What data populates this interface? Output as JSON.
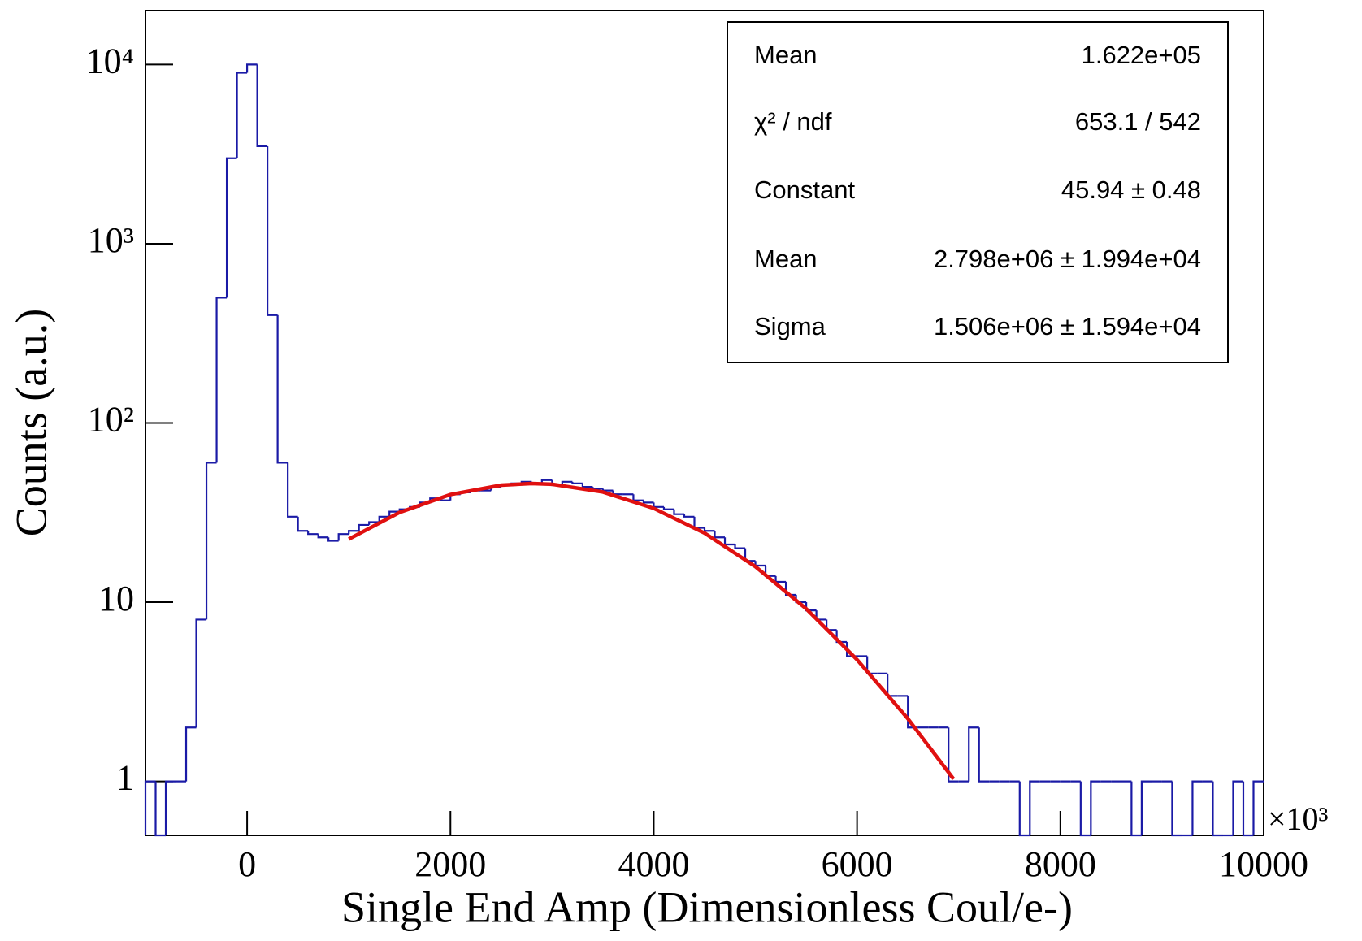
{
  "chart_data": {
    "type": "histogram",
    "x_label": "Single End Amp (Dimensionless Coul/e-)",
    "y_label": "Counts (a.u.)",
    "x_multiplier": "×10³",
    "log_y": true,
    "color": "#1a1aa6",
    "bins": [
      -1000,
      -900,
      -800,
      -700,
      -600,
      -500,
      -400,
      -300,
      -200,
      -100,
      0,
      100,
      200,
      300,
      400,
      500,
      600,
      700,
      800,
      900,
      1000,
      1100,
      1200,
      1300,
      1400,
      1500,
      1600,
      1700,
      1800,
      1900,
      2000,
      2100,
      2200,
      2300,
      2400,
      2500,
      2600,
      2700,
      2800,
      2900,
      3000,
      3100,
      3200,
      3300,
      3400,
      3500,
      3600,
      3700,
      3800,
      3900,
      4000,
      4100,
      4200,
      4300,
      4400,
      4500,
      4600,
      4700,
      4800,
      4900,
      5000,
      5100,
      5200,
      5300,
      5400,
      5500,
      5600,
      5700,
      5800,
      5900,
      6000,
      6100,
      6200,
      6300,
      6400,
      6500,
      6600,
      6700,
      6800,
      6900,
      7000,
      7100,
      7200,
      7300,
      7400,
      7500,
      7600,
      7700,
      7800,
      7900,
      8000,
      8100,
      8200,
      8300,
      8400,
      8500,
      8600,
      8700,
      8800,
      8900,
      9000,
      9100,
      9200,
      9300,
      9400,
      9500,
      9600,
      9700,
      9800,
      9900,
      10000
    ],
    "values": [
      1,
      0,
      1,
      1,
      2,
      8,
      60,
      500,
      3000,
      9000,
      10000,
      3500,
      400,
      60,
      30,
      25,
      24,
      23,
      22,
      24,
      25,
      27,
      28,
      30,
      32,
      33,
      34,
      36,
      38,
      37,
      40,
      41,
      42,
      42,
      44,
      45,
      46,
      47,
      46,
      48,
      45,
      47,
      46,
      44,
      43,
      42,
      40,
      40,
      37,
      36,
      34,
      33,
      31,
      30,
      26,
      25,
      23,
      21,
      20,
      17,
      16,
      14,
      13,
      11,
      10,
      9,
      8,
      7,
      6,
      5,
      5,
      4,
      4,
      3,
      3,
      2,
      2,
      2,
      2,
      1,
      1,
      2,
      1,
      1,
      1,
      1,
      0,
      1,
      1,
      1,
      1,
      1,
      0,
      1,
      1,
      1,
      1,
      0,
      1,
      1,
      1,
      0,
      0,
      1,
      1,
      0,
      0,
      1,
      0,
      1
    ],
    "fit": {
      "color": "#e01010",
      "x": [
        1000,
        1500,
        2000,
        2500,
        2798,
        3000,
        3500,
        4000,
        4500,
        5000,
        5500,
        6000,
        6500,
        6950
      ],
      "values": [
        22.5,
        31.7,
        39.9,
        45.0,
        45.94,
        45.5,
        41.2,
        33.4,
        24.3,
        15.8,
        9.19,
        4.78,
        2.24,
        1.03
      ]
    },
    "xlim": [
      -1000,
      10000
    ],
    "xticks": [
      0,
      2000,
      4000,
      6000,
      8000,
      10000
    ],
    "ylim": [
      0.5,
      20000
    ],
    "yticks": [
      1,
      10,
      {
        "value": 100,
        "label": "10²"
      },
      {
        "value": 1000,
        "label": "10³"
      },
      {
        "value": 10000,
        "label": "10⁴"
      }
    ],
    "stats": [
      {
        "name": "Mean",
        "value": "1.622e+05"
      },
      {
        "name": "χ² / ndf",
        "value": "653.1 / 542"
      },
      {
        "name": "Constant",
        "value": "45.94 ± 0.48"
      },
      {
        "name": "Mean",
        "value": "2.798e+06 ± 1.994e+04"
      },
      {
        "name": "Sigma",
        "value": "1.506e+06 ± 1.594e+04"
      }
    ]
  }
}
